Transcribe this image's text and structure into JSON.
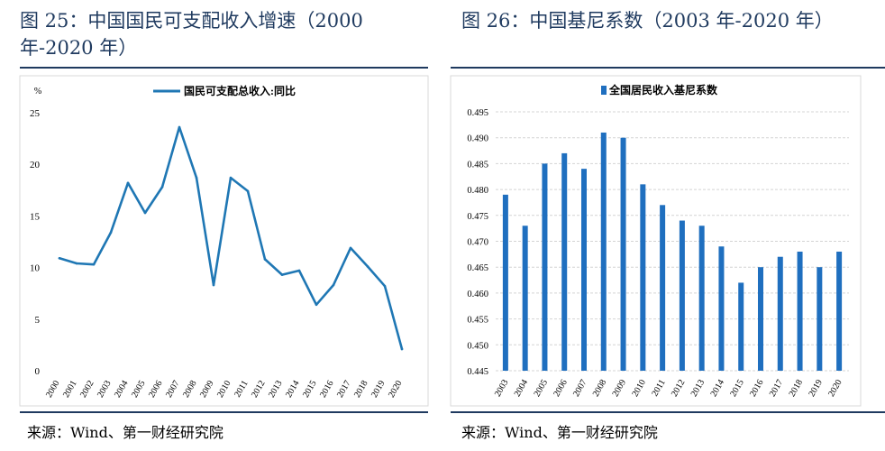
{
  "left": {
    "title": "图 25：中国国民可支配收入增速（2000 年-2020 年）",
    "source": "来源：Wind、第一财经研究院",
    "chart_data": {
      "type": "line",
      "y_unit": "%",
      "ylim": [
        0,
        25
      ],
      "yticks": [
        0,
        5,
        10,
        15,
        20,
        25
      ],
      "grid": false,
      "legend_position": "top-center",
      "categories": [
        "2000",
        "2001",
        "2002",
        "2003",
        "2004",
        "2005",
        "2006",
        "2007",
        "2008",
        "2009",
        "2010",
        "2011",
        "2012",
        "2013",
        "2014",
        "2015",
        "2016",
        "2017",
        "2018",
        "2019",
        "2020"
      ],
      "series": [
        {
          "name": "国民可支配总收入:同比",
          "color": "#1f77b4",
          "values": [
            10.9,
            10.4,
            10.3,
            13.4,
            18.2,
            15.3,
            17.8,
            23.6,
            18.7,
            8.3,
            18.7,
            17.4,
            10.8,
            9.3,
            9.7,
            6.4,
            8.3,
            11.9,
            10.1,
            8.2,
            2.1
          ]
        }
      ]
    }
  },
  "right": {
    "title": "图 26：中国基尼系数（2003 年-2020 年）",
    "source": "来源：Wind、第一财经研究院",
    "chart_data": {
      "type": "bar",
      "ylim": [
        0.445,
        0.495
      ],
      "yticks": [
        "0.445",
        "0.450",
        "0.455",
        "0.460",
        "0.465",
        "0.470",
        "0.475",
        "0.480",
        "0.485",
        "0.490",
        "0.495"
      ],
      "grid": true,
      "legend_position": "top-left",
      "categories": [
        "2003",
        "2004",
        "2005",
        "2006",
        "2007",
        "2008",
        "2009",
        "2010",
        "2011",
        "2012",
        "2013",
        "2014",
        "2015",
        "2016",
        "2017",
        "2018",
        "2019",
        "2020"
      ],
      "series": [
        {
          "name": "全国居民收入基尼系数",
          "color": "#1f6fbf",
          "values": [
            0.479,
            0.473,
            0.485,
            0.487,
            0.484,
            0.491,
            0.49,
            0.481,
            0.477,
            0.474,
            0.473,
            0.469,
            0.462,
            0.465,
            0.467,
            0.468,
            0.465,
            0.468
          ]
        }
      ]
    }
  }
}
